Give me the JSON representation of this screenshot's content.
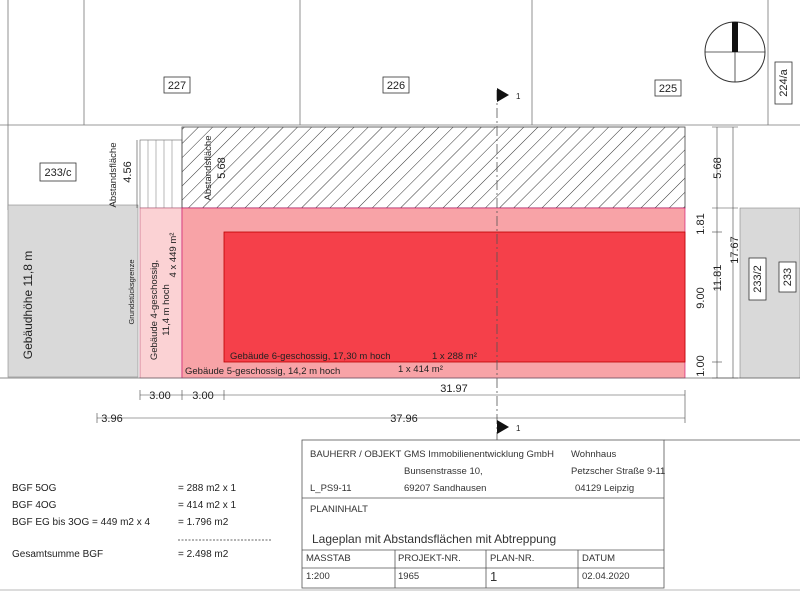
{
  "parcels": {
    "p227": "227",
    "p226": "226",
    "p225": "225",
    "p224a": "224/a",
    "p233c": "233/c",
    "p233_2": "233/2",
    "p233": "233"
  },
  "labels": {
    "gebaeudehoehe": "Gebäudhöhe 11,8 m",
    "abstandsflaeche_left": "Abstandsfläche",
    "abstandsflaeche_hatch": "Abstandsfläche",
    "grundstuecksgrenze": "Grundstücksgrenze",
    "building4_line1": "Gebäude 4-geschossig,",
    "building4_line2": "11,4 m hoch",
    "building4_area": "4 x 449 m²",
    "building6": "Gebäude 6-geschossig, 17,30 m hoch",
    "building6_area": "1 x 288 m²",
    "building5": "Gebäude 5-geschossig, 14,2 m hoch",
    "building5_area": "1 x 414 m²"
  },
  "dimensions": {
    "d456": "4.56",
    "d568_hatch": "5.68",
    "d568_right": "5.68",
    "d181": "1.81",
    "d1181": "11.81",
    "d1767": "17.67",
    "d900": "9.00",
    "d100": "1.00",
    "d300a": "3.00",
    "d300b": "3.00",
    "d3197": "31.97",
    "d396": "3.96",
    "d3796": "37.96"
  },
  "section_marker": "1",
  "bgf": {
    "row1_label": "BGF 5OG",
    "row1_value": "=        288 m2  x 1",
    "row2_label": "BGF 4OG",
    "row2_value": "=        414 m2  x 1",
    "row3_label": "BGF EG bis  3OG = 449 m2  x  4",
    "row3_value": "=  1.796 m2",
    "total_label": "Gesamtsumme  BGF",
    "total_value": "=  2.498 m2"
  },
  "title_block": {
    "bauherr_label": "BAUHERR / OBJEKT",
    "client_name": "GMS Immobilienentwicklung GmbH",
    "client_street": "Bunsenstrasse 10,",
    "client_city": "69207   Sandhausen",
    "project_code": "L_PS9-11",
    "object_name": "Wohnhaus",
    "object_street": "Petzscher Straße 9-11",
    "object_city": "04129 Leipzig",
    "planinhalt_label": "PLANINHALT",
    "plan_title": "Lageplan mit Abstandsflächen mit Abtreppung",
    "masstab_label": "MASSTAB",
    "masstab_value": "1:200",
    "projekt_label": "PROJEKT-NR.",
    "projekt_value": "1965",
    "plan_label": "PLAN-NR.",
    "plan_value": "1",
    "datum_label": "DATUM",
    "datum_value": "02.04.2020"
  },
  "colors": {
    "red_building": "#f5404a",
    "pink_zone": "#f8a3a7",
    "light_pink": "#fbd2d4",
    "grey_neighbor": "#d9d9d9",
    "line": "#555555"
  }
}
